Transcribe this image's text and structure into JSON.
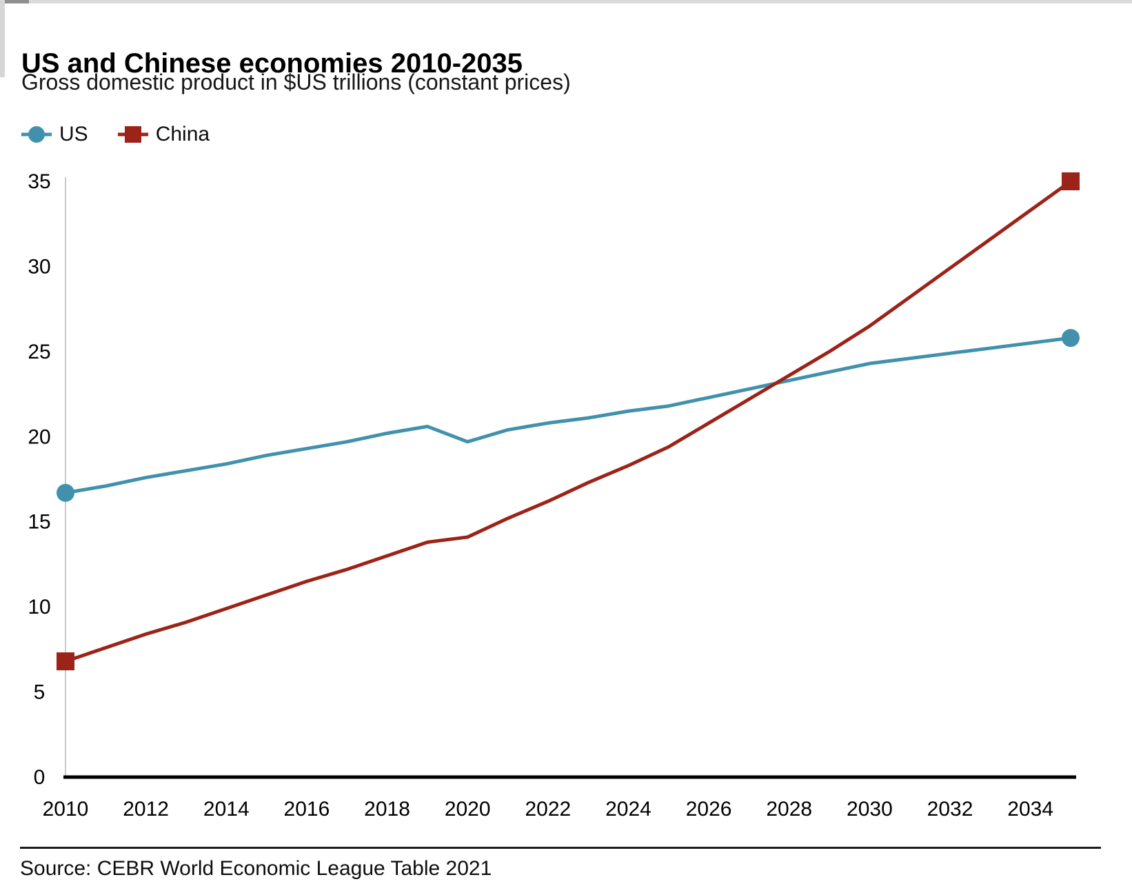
{
  "header": {
    "title": "US and Chinese economies 2010-2035",
    "subtitle": "Gross domestic product in $US trillions (constant prices)"
  },
  "footer": {
    "source": "Source: CEBR World Economic League Table 2021"
  },
  "chart_data": {
    "type": "line",
    "title": "US and Chinese economies 2010-2035",
    "subtitle": "Gross domestic product in $US trillions (constant prices)",
    "source": "Source: CEBR World Economic League Table 2021",
    "xlabel": "",
    "ylabel": "",
    "x": [
      2010,
      2011,
      2012,
      2013,
      2014,
      2015,
      2016,
      2017,
      2018,
      2019,
      2020,
      2021,
      2022,
      2023,
      2024,
      2025,
      2026,
      2027,
      2028,
      2029,
      2030,
      2031,
      2032,
      2033,
      2034,
      2035
    ],
    "series": [
      {
        "name": "US",
        "color": "#4191ad",
        "marker": "circle",
        "values": [
          16.7,
          17.1,
          17.6,
          18.0,
          18.4,
          18.9,
          19.3,
          19.7,
          20.2,
          20.6,
          19.7,
          20.4,
          20.8,
          21.1,
          21.5,
          21.8,
          22.3,
          22.8,
          23.3,
          23.8,
          24.3,
          24.6,
          24.9,
          25.2,
          25.5,
          25.8
        ]
      },
      {
        "name": "China",
        "color": "#9b2318",
        "marker": "square",
        "values": [
          6.8,
          7.6,
          8.4,
          9.1,
          9.9,
          10.7,
          11.5,
          12.2,
          13.0,
          13.8,
          14.1,
          15.2,
          16.2,
          17.3,
          18.3,
          19.4,
          20.8,
          22.2,
          23.6,
          25.0,
          26.5,
          28.2,
          29.9,
          31.6,
          33.3,
          35.0
        ]
      }
    ],
    "xlim": [
      2010,
      2035
    ],
    "ylim": [
      0,
      35
    ],
    "xticks": [
      2010,
      2012,
      2014,
      2016,
      2018,
      2020,
      2022,
      2024,
      2026,
      2028,
      2030,
      2032,
      2034
    ],
    "yticks": [
      0,
      5,
      10,
      15,
      20,
      25,
      30,
      35
    ],
    "grid": false,
    "legend_position": "top-left",
    "axis": {
      "x_color": "#000000",
      "y_color": "#c9c9c9",
      "tick_color": "#000000"
    }
  }
}
